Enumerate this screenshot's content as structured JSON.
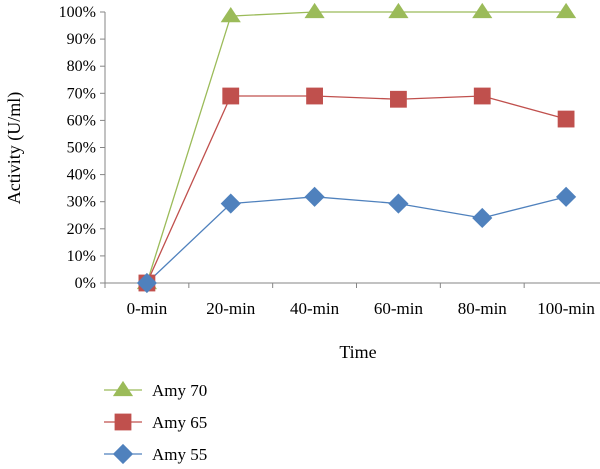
{
  "chart_data": {
    "type": "line",
    "title": "",
    "xlabel": "Time",
    "ylabel": "Activity (U/ml)",
    "categories": [
      "0-min",
      "20-min",
      "40-min",
      "60-min",
      "80-min",
      "100-min"
    ],
    "ylim": [
      0,
      100
    ],
    "yticks": [
      "0%",
      "10%",
      "20%",
      "30%",
      "40%",
      "50%",
      "60%",
      "70%",
      "80%",
      "90%",
      "100%"
    ],
    "grid": false,
    "legend_placement": "bottom-left",
    "series": [
      {
        "name": "Amy 70",
        "values": [
          0,
          98.5,
          100,
          100,
          100,
          100
        ],
        "color": "#9bbb59",
        "marker": "triangle"
      },
      {
        "name": "Amy 65",
        "values": [
          0,
          69,
          69,
          67.8,
          69,
          60.5
        ],
        "color": "#c0504d",
        "marker": "square"
      },
      {
        "name": "Amy 55",
        "values": [
          0,
          29.3,
          31.8,
          29.3,
          24,
          31.8
        ],
        "color": "#4f81bd",
        "marker": "diamond"
      }
    ]
  }
}
